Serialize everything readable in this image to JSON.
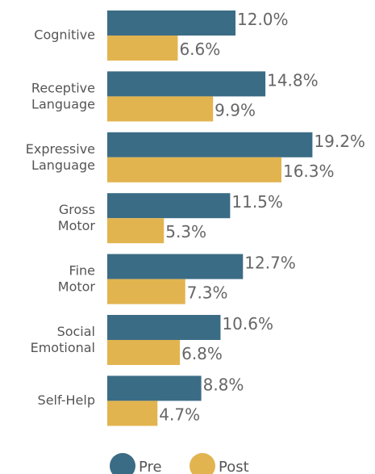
{
  "chart_data": {
    "type": "bar",
    "orientation": "horizontal",
    "categories": [
      "Cognitive",
      "Receptive Language",
      "Expressive Language",
      "Gross Motor",
      "Fine Motor",
      "Social Emotional",
      "Self-Help"
    ],
    "series": [
      {
        "name": "Pre",
        "color": "#3b6c85",
        "values": [
          12.0,
          14.8,
          19.2,
          11.5,
          12.7,
          10.6,
          8.8
        ],
        "value_labels": [
          "12.0%",
          "14.8%",
          "19.2%",
          "11.5%",
          "12.7%",
          "10.6%",
          "8.8%"
        ]
      },
      {
        "name": "Post",
        "color": "#e2b450",
        "values": [
          6.6,
          9.9,
          16.3,
          5.3,
          7.3,
          6.8,
          4.7
        ],
        "value_labels": [
          "6.6%",
          "9.9%",
          "16.3%",
          "5.3%",
          "7.3%",
          "6.8%",
          "4.7%"
        ]
      }
    ],
    "xlim": [
      0,
      20
    ],
    "legend": "bottom"
  }
}
